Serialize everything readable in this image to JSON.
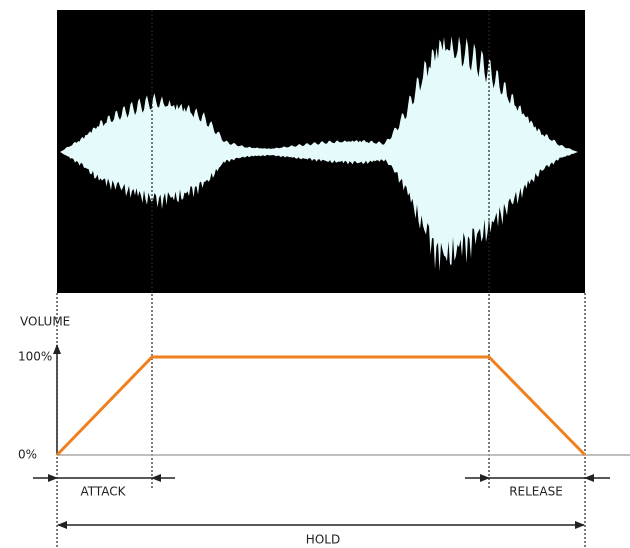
{
  "labels": {
    "volume": "VOLUME",
    "full": "100%",
    "zero": "0%",
    "attack": "ATTACK",
    "release": "RELEASE",
    "hold": "HOLD"
  }
}
